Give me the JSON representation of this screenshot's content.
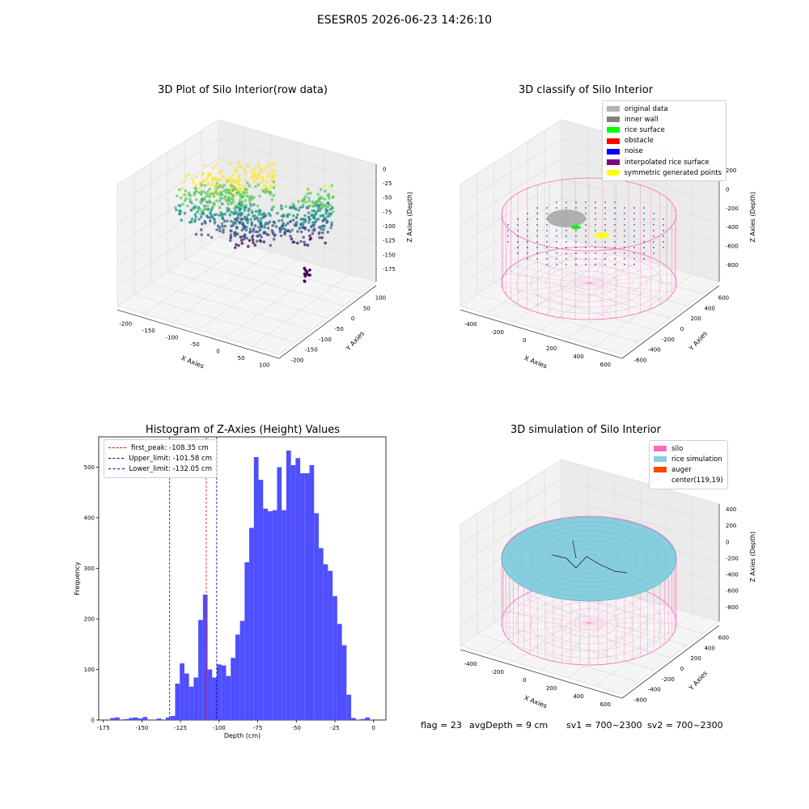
{
  "figure": {
    "suptitle": "ESESR05 2026-06-23 14:26:10",
    "status": {
      "flag": "flag = 23",
      "avg_depth": "avgDepth = 9 cm",
      "sv1": "sv1 = 700~2300",
      "sv2": "sv2 = 700~2300"
    }
  },
  "colors": {
    "grid": "#dcdcdc",
    "pane": "#f2f2f2",
    "hist_bar": "#4b4bff",
    "silo": "#ff69b4",
    "rice": "#87cedf",
    "auger": "#ff4500",
    "peak_line": "#ff0000",
    "limit_line": "#0000bb"
  },
  "chart_data": [
    {
      "type": "scatter",
      "title": "3D Plot of Silo Interior(row data)",
      "xlabel": "X Axies",
      "ylabel": "Y Axies",
      "zlabel": "Z Axies (Depth)",
      "x_ticks": [
        "-200",
        "-150",
        "-100",
        "-50",
        "0",
        "50",
        "100"
      ],
      "y_ticks": [
        "-200",
        "-150",
        "-100",
        "-50",
        "0",
        "50",
        "100"
      ],
      "z_ticks": [
        "0",
        "-25",
        "-50",
        "-75",
        "-100",
        "-125",
        "-150",
        "-175"
      ],
      "colormap": "viridis"
    },
    {
      "type": "scatter",
      "title": "3D classify of Silo Interior",
      "xlabel": "X Axies",
      "ylabel": "Y Axies",
      "zlabel": "Z Axies (Depth)",
      "x_ticks": [
        "-400",
        "-200",
        "0",
        "200",
        "400",
        "600"
      ],
      "y_ticks": [
        "-600",
        "-400",
        "-200",
        "0",
        "200",
        "400",
        "600"
      ],
      "z_ticks": [
        "200",
        "0",
        "-200",
        "-400",
        "-600",
        "-800"
      ],
      "legend": [
        {
          "label": "original data",
          "color": "#b3b3b3"
        },
        {
          "label": "inner wall",
          "color": "#808080"
        },
        {
          "label": "rice surface",
          "color": "#00ff00"
        },
        {
          "label": "obstacle",
          "color": "#ff0000"
        },
        {
          "label": "noise",
          "color": "#0000ff"
        },
        {
          "label": "interpolated rice surface",
          "color": "#800080"
        },
        {
          "label": "symmetric generated points",
          "color": "#ffff00"
        }
      ]
    },
    {
      "type": "bar",
      "title": "Histogram of Z-Axies (Height) Values",
      "xlabel": "Depth (cm)",
      "ylabel": "Frequency",
      "xlim": [
        -178,
        8
      ],
      "ylim": [
        0,
        560
      ],
      "x_ticks": [
        -175,
        -150,
        -125,
        -100,
        -75,
        -50,
        -25,
        0
      ],
      "y_ticks": [
        0,
        100,
        200,
        300,
        400,
        500
      ],
      "bin_width": 3.0,
      "bins": [
        {
          "x": -169.0,
          "v": 4
        },
        {
          "x": -166.0,
          "v": 5
        },
        {
          "x": -160.0,
          "v": 2
        },
        {
          "x": -157.0,
          "v": 4
        },
        {
          "x": -154.0,
          "v": 5
        },
        {
          "x": -151.0,
          "v": 3
        },
        {
          "x": -148.0,
          "v": 6
        },
        {
          "x": -139.0,
          "v": 3
        },
        {
          "x": -133.0,
          "v": 5
        },
        {
          "x": -130.0,
          "v": 8
        },
        {
          "x": -127.0,
          "v": 72
        },
        {
          "x": -124.0,
          "v": 112
        },
        {
          "x": -121.0,
          "v": 92
        },
        {
          "x": -118.0,
          "v": 66
        },
        {
          "x": -115.0,
          "v": 84
        },
        {
          "x": -112.0,
          "v": 198
        },
        {
          "x": -109.0,
          "v": 248
        },
        {
          "x": -106.0,
          "v": 100
        },
        {
          "x": -103.0,
          "v": 84
        },
        {
          "x": -100.0,
          "v": 110
        },
        {
          "x": -97.0,
          "v": 108
        },
        {
          "x": -94.0,
          "v": 87
        },
        {
          "x": -91.0,
          "v": 123
        },
        {
          "x": -88.0,
          "v": 169
        },
        {
          "x": -85.0,
          "v": 196
        },
        {
          "x": -82.0,
          "v": 312
        },
        {
          "x": -79.0,
          "v": 380
        },
        {
          "x": -76.0,
          "v": 520
        },
        {
          "x": -73.0,
          "v": 475
        },
        {
          "x": -70.0,
          "v": 418
        },
        {
          "x": -67.0,
          "v": 413
        },
        {
          "x": -64.0,
          "v": 415
        },
        {
          "x": -61.0,
          "v": 500
        },
        {
          "x": -58.0,
          "v": 415
        },
        {
          "x": -55.0,
          "v": 533
        },
        {
          "x": -52.0,
          "v": 504
        },
        {
          "x": -49.0,
          "v": 518
        },
        {
          "x": -46.0,
          "v": 488
        },
        {
          "x": -43.0,
          "v": 488
        },
        {
          "x": -40.0,
          "v": 504
        },
        {
          "x": -37.0,
          "v": 409
        },
        {
          "x": -34.0,
          "v": 340
        },
        {
          "x": -31.0,
          "v": 308
        },
        {
          "x": -28.0,
          "v": 295
        },
        {
          "x": -25.0,
          "v": 245
        },
        {
          "x": -22.0,
          "v": 190
        },
        {
          "x": -19.0,
          "v": 148
        },
        {
          "x": -16.0,
          "v": 50
        },
        {
          "x": -13.0,
          "v": 4
        },
        {
          "x": -7.0,
          "v": 2
        },
        {
          "x": -4.0,
          "v": 5
        }
      ],
      "vlines": [
        {
          "label": "first_peak: -108.35 cm",
          "x": -108.35,
          "color": "#ff0000"
        },
        {
          "label": "Upper_limit: -101.58 cm",
          "x": -101.58,
          "color": "#0000bb"
        },
        {
          "label": "Lower_limit: -132.05 cm",
          "x": -132.05,
          "color": "#0000bb"
        }
      ]
    },
    {
      "type": "scatter",
      "title": "3D simulation of Silo Interior",
      "xlabel": "X Axies",
      "ylabel": "Y Axies",
      "zlabel": "Z Axies (Depth)",
      "x_ticks": [
        "-400",
        "-200",
        "0",
        "200",
        "400",
        "600"
      ],
      "y_ticks": [
        "-600",
        "-400",
        "-200",
        "0",
        "200",
        "400",
        "600"
      ],
      "z_ticks": [
        "400",
        "200",
        "0",
        "-200",
        "-400",
        "-600",
        "-800"
      ],
      "legend": [
        {
          "label": "silo",
          "color": "#ff69b4"
        },
        {
          "label": "rice simulation",
          "color": "#87cedf"
        },
        {
          "label": "auger",
          "color": "#ff4500"
        },
        {
          "label": "center(119,19)",
          "color": ""
        }
      ]
    }
  ]
}
